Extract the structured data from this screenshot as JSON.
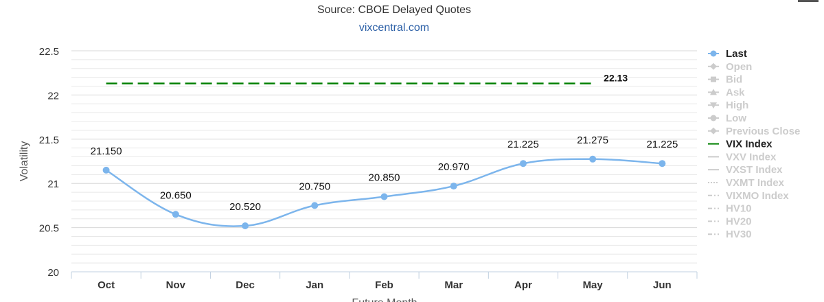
{
  "chart_data": {
    "type": "line",
    "source_text": "Source: CBOE Delayed Quotes",
    "site_text": "vixcentral.com",
    "xlabel": "Future Month",
    "ylabel": "Volatility",
    "ylim": [
      20,
      22.5
    ],
    "yticks": [
      "20",
      "20.5",
      "21",
      "21.5",
      "22",
      "22.5"
    ],
    "categories": [
      "Oct",
      "Nov",
      "Dec",
      "Jan",
      "Feb",
      "Mar",
      "Apr",
      "May",
      "Jun"
    ],
    "series": [
      {
        "name": "Last",
        "color": "#7cb5ec",
        "values": [
          21.15,
          20.65,
          20.52,
          20.75,
          20.85,
          20.97,
          21.225,
          21.275,
          21.225
        ],
        "labels": [
          "21.150",
          "20.650",
          "20.520",
          "20.750",
          "20.850",
          "20.970",
          "21.225",
          "21.275",
          "21.225"
        ]
      },
      {
        "name": "VIX Index",
        "color": "#008000",
        "style": "dashed",
        "value": 22.13,
        "label": "22.13"
      }
    ],
    "grid": true,
    "legend_position": "right",
    "legend": [
      {
        "name": "Last",
        "active": true,
        "color": "#7cb5ec",
        "marker": "circle"
      },
      {
        "name": "Open",
        "active": false,
        "marker": "diamond"
      },
      {
        "name": "Bid",
        "active": false,
        "marker": "square"
      },
      {
        "name": "Ask",
        "active": false,
        "marker": "triangle-up"
      },
      {
        "name": "High",
        "active": false,
        "marker": "triangle-down"
      },
      {
        "name": "Low",
        "active": false,
        "marker": "circle"
      },
      {
        "name": "Previous Close",
        "active": false,
        "marker": "diamond"
      },
      {
        "name": "VIX Index",
        "active": true,
        "color": "#008000",
        "marker": "line"
      },
      {
        "name": "VXV Index",
        "active": false,
        "marker": "line"
      },
      {
        "name": "VXST Index",
        "active": false,
        "marker": "line"
      },
      {
        "name": "VXMT Index",
        "active": false,
        "marker": "dotted"
      },
      {
        "name": "VIXMO Index",
        "active": false,
        "marker": "dashdot"
      },
      {
        "name": "HV10",
        "active": false,
        "marker": "dashdot"
      },
      {
        "name": "HV20",
        "active": false,
        "marker": "dashdot"
      },
      {
        "name": "HV30",
        "active": false,
        "marker": "dashdot"
      }
    ],
    "inactive_color": "#cccccc"
  }
}
